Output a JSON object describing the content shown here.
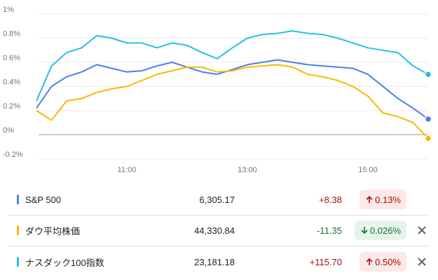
{
  "chart_data": {
    "type": "line",
    "x": [
      "09:30",
      "09:45",
      "10:00",
      "10:15",
      "10:30",
      "10:45",
      "11:00",
      "11:15",
      "11:30",
      "11:45",
      "12:00",
      "12:15",
      "12:30",
      "12:45",
      "13:00",
      "13:15",
      "13:30",
      "13:45",
      "14:00",
      "14:15",
      "14:30",
      "14:45",
      "15:00",
      "15:15",
      "15:30",
      "15:45",
      "16:00"
    ],
    "xticks": [
      "11:00",
      "13:00",
      "15:00"
    ],
    "ylim": [
      -0.2,
      1
    ],
    "yticks": [
      {
        "value": -0.2,
        "label": "-0.2%"
      },
      {
        "value": 0,
        "label": "0%"
      },
      {
        "value": 0.2,
        "label": "0.2%"
      },
      {
        "value": 0.4,
        "label": "0.4%"
      },
      {
        "value": 0.6,
        "label": "0.6%"
      },
      {
        "value": 0.8,
        "label": "0.8%"
      },
      {
        "value": 1,
        "label": "1%"
      }
    ],
    "grid": true,
    "series": [
      {
        "color": "#4a80e8",
        "values": [
          0.22,
          0.4,
          0.48,
          0.52,
          0.58,
          0.55,
          0.52,
          0.53,
          0.57,
          0.6,
          0.56,
          0.52,
          0.5,
          0.54,
          0.58,
          0.6,
          0.62,
          0.6,
          0.58,
          0.57,
          0.56,
          0.55,
          0.5,
          0.4,
          0.3,
          0.22,
          0.13
        ]
      },
      {
        "color": "#f9b900",
        "values": [
          0.2,
          0.12,
          0.28,
          0.3,
          0.35,
          0.38,
          0.4,
          0.45,
          0.5,
          0.53,
          0.56,
          0.56,
          0.52,
          0.53,
          0.56,
          0.57,
          0.58,
          0.56,
          0.5,
          0.48,
          0.45,
          0.4,
          0.32,
          0.18,
          0.15,
          0.1,
          -0.03
        ]
      },
      {
        "color": "#24c1e0",
        "values": [
          0.28,
          0.57,
          0.68,
          0.72,
          0.82,
          0.8,
          0.76,
          0.76,
          0.72,
          0.76,
          0.74,
          0.68,
          0.63,
          0.72,
          0.8,
          0.83,
          0.84,
          0.86,
          0.84,
          0.83,
          0.8,
          0.76,
          0.72,
          0.7,
          0.68,
          0.57,
          0.5
        ]
      }
    ]
  },
  "table": {
    "rows": [
      {
        "name": "S&P 500",
        "price": "6,305.17",
        "change": "+8.38",
        "percent": "0.13%",
        "direction": "up"
      },
      {
        "name": "ダウ平均株価",
        "price": "44,330.84",
        "change": "-11.35",
        "percent": "0.026%",
        "direction": "down"
      },
      {
        "name": "ナスダック100指数",
        "price": "23,181.18",
        "change": "+115.70",
        "percent": "0.50%",
        "direction": "up"
      }
    ]
  }
}
